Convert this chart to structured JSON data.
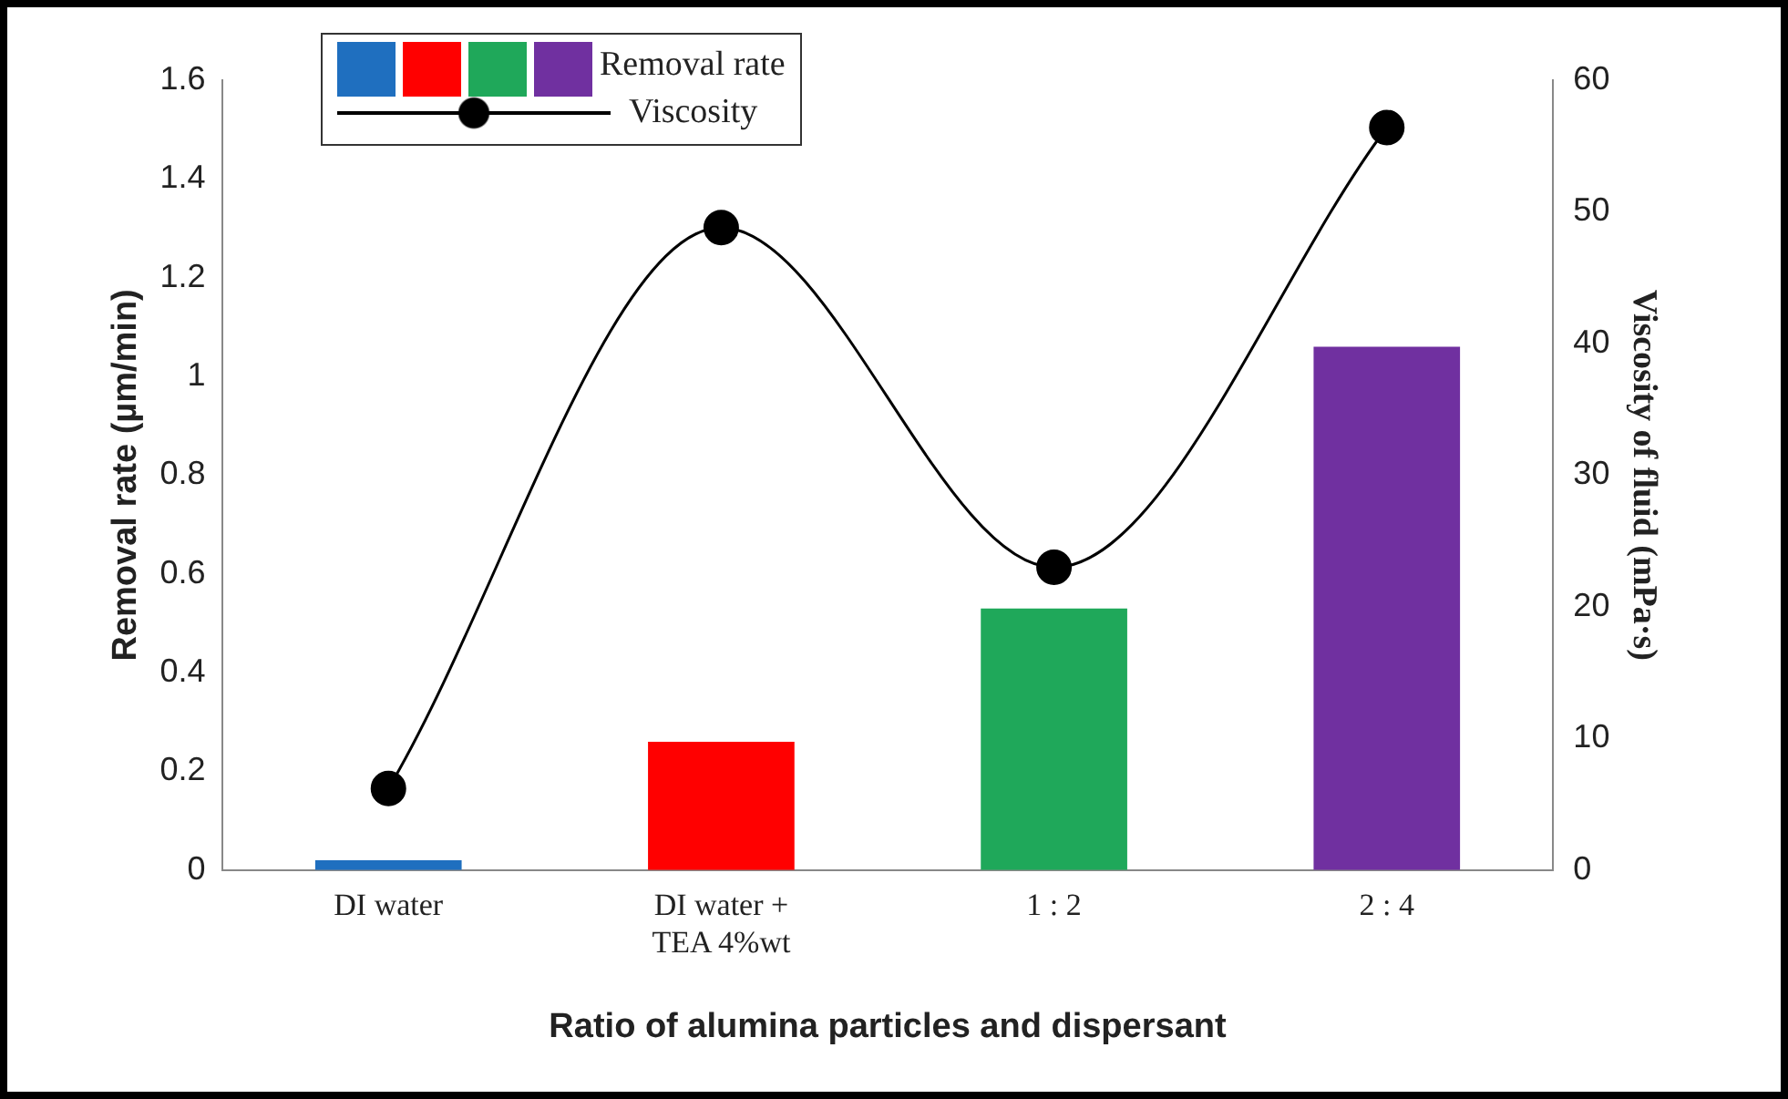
{
  "chart_data": {
    "type": "bar",
    "xlabel": "Ratio of alumina particles and dispersant",
    "ylabel": "Removal rate (µm/min)",
    "y2label": "Viscosity of fluid (mPa·s)",
    "categories": [
      "DI water",
      "DI water + TEA 4%wt",
      "1 : 2",
      "2 : 4"
    ],
    "series": [
      {
        "name": "Removal rate",
        "type": "bar",
        "colors": [
          "#1f6fbf",
          "#ff0000",
          "#1fa85a",
          "#7030a0"
        ],
        "values": [
          0.02,
          0.26,
          0.53,
          1.06
        ]
      },
      {
        "name": "Viscosity",
        "type": "line",
        "axis": "y2",
        "color": "#000000",
        "marker": "circle",
        "values": [
          6.2,
          48.8,
          23,
          56.4
        ]
      }
    ],
    "ylim": [
      0,
      1.6
    ],
    "yticks": [
      0,
      0.2,
      0.4,
      0.6,
      0.8,
      1,
      1.2,
      1.4,
      1.6
    ],
    "y2lim": [
      0,
      60
    ],
    "y2ticks": [
      0,
      10,
      20,
      30,
      40,
      50,
      60
    ],
    "grid": false,
    "legend": "top left"
  }
}
